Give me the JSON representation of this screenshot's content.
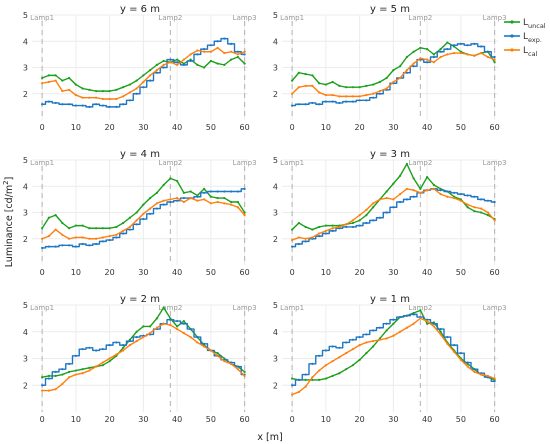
{
  "chart_data": {
    "type": "line",
    "ylabel_main": "Luminance [cd/m",
    "ylabel_sup": "2",
    "ylabel_end": "]",
    "xlabel": "x [m]",
    "xlim": [
      -3,
      61
    ],
    "ylim": [
      1,
      5
    ],
    "xticks": [
      "0",
      "10",
      "20",
      "30",
      "40",
      "50",
      "60"
    ],
    "yticks": [
      "2",
      "3",
      "4",
      "5"
    ],
    "lamps": [
      {
        "name": "Lamp1",
        "x": 0
      },
      {
        "name": "Lamp2",
        "x": 38
      },
      {
        "name": "Lamp3",
        "x": 60
      }
    ],
    "legend": [
      {
        "base": "L",
        "sub": "uncal",
        "color": "#1aa01a"
      },
      {
        "base": "L",
        "sub": "exp.",
        "color": "#1f77c4"
      },
      {
        "base": "L",
        "sub": "cal",
        "color": "#ff7f0e"
      }
    ],
    "x": [
      0,
      2,
      4,
      6,
      8,
      10,
      12,
      14,
      16,
      18,
      20,
      22,
      24,
      26,
      28,
      30,
      32,
      34,
      36,
      38,
      40,
      42,
      44,
      46,
      48,
      50,
      52,
      54,
      56,
      58,
      60
    ],
    "panels": [
      {
        "title": "y = 6 m",
        "series": [
          {
            "name": "L_uncal",
            "color": "#1aa01a",
            "values": [
              2.6,
              2.7,
              2.7,
              2.5,
              2.6,
              2.35,
              2.2,
              2.15,
              2.1,
              2.1,
              2.1,
              2.15,
              2.25,
              2.35,
              2.5,
              2.7,
              2.9,
              3.1,
              3.25,
              3.2,
              3.3,
              3.15,
              3.3,
              3.1,
              3.0,
              3.25,
              3.15,
              3.1,
              3.3,
              3.4,
              3.15
            ]
          },
          {
            "name": "L_exp.",
            "color": "#1f77c4",
            "values": [
              1.6,
              1.7,
              1.65,
              1.6,
              1.6,
              1.55,
              1.55,
              1.5,
              1.6,
              1.55,
              1.5,
              1.5,
              1.6,
              1.75,
              2.0,
              2.25,
              2.5,
              2.8,
              3.0,
              3.3,
              3.2,
              3.1,
              3.25,
              3.5,
              3.7,
              3.85,
              4.0,
              4.1,
              3.9,
              3.6,
              3.5
            ]
          },
          {
            "name": "L_cal",
            "color": "#ff7f0e",
            "values": [
              2.4,
              2.45,
              2.5,
              2.1,
              2.15,
              1.95,
              1.85,
              1.85,
              1.85,
              1.8,
              1.8,
              1.8,
              1.9,
              2.05,
              2.2,
              2.45,
              2.7,
              2.9,
              3.1,
              3.2,
              3.1,
              3.3,
              3.5,
              3.65,
              3.6,
              3.6,
              3.75,
              3.55,
              3.6,
              3.5,
              3.6
            ]
          }
        ]
      },
      {
        "title": "y = 5 m",
        "series": [
          {
            "name": "L_uncal",
            "color": "#1aa01a",
            "values": [
              2.5,
              2.8,
              2.75,
              2.7,
              2.4,
              2.35,
              2.45,
              2.3,
              2.25,
              2.25,
              2.25,
              2.3,
              2.35,
              2.45,
              2.6,
              2.9,
              3.05,
              3.4,
              3.6,
              3.75,
              3.7,
              3.5,
              3.7,
              3.95,
              3.8,
              3.6,
              3.5,
              3.45,
              3.55,
              3.6,
              3.2
            ]
          },
          {
            "name": "L_exp.",
            "color": "#1f77c4",
            "values": [
              1.55,
              1.6,
              1.6,
              1.65,
              1.6,
              1.7,
              1.7,
              1.65,
              1.7,
              1.7,
              1.75,
              1.75,
              1.85,
              2.0,
              2.15,
              2.4,
              2.6,
              2.8,
              3.05,
              3.3,
              3.2,
              3.4,
              3.6,
              3.7,
              3.85,
              3.9,
              3.85,
              3.9,
              3.8,
              3.6,
              3.4
            ]
          },
          {
            "name": "L_cal",
            "color": "#ff7f0e",
            "values": [
              2.0,
              2.25,
              2.3,
              2.3,
              2.05,
              1.95,
              1.95,
              1.9,
              1.9,
              1.9,
              1.9,
              1.95,
              2.0,
              2.1,
              2.2,
              2.45,
              2.6,
              2.9,
              3.15,
              3.35,
              3.3,
              3.2,
              3.4,
              3.5,
              3.55,
              3.55,
              3.5,
              3.45,
              3.55,
              3.4,
              3.3
            ]
          }
        ]
      },
      {
        "title": "y = 4 m",
        "series": [
          {
            "name": "L_uncal",
            "color": "#1aa01a",
            "values": [
              2.4,
              2.8,
              2.9,
              2.6,
              2.4,
              2.5,
              2.5,
              2.4,
              2.4,
              2.4,
              2.4,
              2.45,
              2.6,
              2.8,
              3.0,
              3.3,
              3.55,
              3.75,
              4.05,
              4.3,
              4.2,
              3.75,
              3.8,
              3.65,
              3.9,
              3.6,
              3.55,
              3.55,
              3.4,
              3.4,
              3.0
            ]
          },
          {
            "name": "L_exp.",
            "color": "#1f77c4",
            "values": [
              1.65,
              1.7,
              1.7,
              1.75,
              1.75,
              1.7,
              1.8,
              1.75,
              1.8,
              1.9,
              1.95,
              2.05,
              2.2,
              2.35,
              2.55,
              2.75,
              2.95,
              3.15,
              3.3,
              3.4,
              3.45,
              3.55,
              3.55,
              3.6,
              3.75,
              3.8,
              3.8,
              3.8,
              3.8,
              3.8,
              3.9
            ]
          },
          {
            "name": "L_cal",
            "color": "#ff7f0e",
            "values": [
              2.0,
              2.1,
              2.35,
              2.15,
              2.0,
              2.05,
              2.05,
              2.0,
              2.0,
              2.05,
              2.1,
              2.15,
              2.3,
              2.45,
              2.7,
              2.95,
              3.15,
              3.35,
              3.45,
              3.5,
              3.55,
              3.4,
              3.55,
              3.45,
              3.5,
              3.35,
              3.4,
              3.35,
              3.3,
              3.2,
              2.9
            ]
          }
        ]
      },
      {
        "title": "y = 3 m",
        "series": [
          {
            "name": "L_uncal",
            "color": "#1aa01a",
            "values": [
              2.35,
              2.6,
              2.45,
              2.35,
              2.45,
              2.5,
              2.5,
              2.5,
              2.55,
              2.6,
              2.7,
              2.9,
              3.2,
              3.5,
              3.8,
              4.1,
              4.4,
              4.85,
              4.3,
              3.9,
              4.35,
              4.05,
              3.9,
              3.8,
              3.6,
              3.5,
              3.2,
              3.05,
              3.0,
              2.9,
              2.75
            ]
          },
          {
            "name": "L_exp.",
            "color": "#1f77c4",
            "values": [
              1.7,
              1.8,
              1.9,
              2.0,
              2.1,
              2.2,
              2.3,
              2.4,
              2.45,
              2.45,
              2.5,
              2.6,
              2.7,
              2.8,
              3.0,
              3.2,
              3.4,
              3.5,
              3.6,
              3.75,
              3.85,
              3.9,
              3.85,
              3.8,
              3.75,
              3.7,
              3.65,
              3.6,
              3.5,
              3.45,
              3.4
            ]
          },
          {
            "name": "L_cal",
            "color": "#ff7f0e",
            "values": [
              1.95,
              2.05,
              2.0,
              2.05,
              2.2,
              2.3,
              2.4,
              2.45,
              2.55,
              2.7,
              2.9,
              3.1,
              3.35,
              3.5,
              3.55,
              3.5,
              3.7,
              3.9,
              3.85,
              3.75,
              3.85,
              3.9,
              3.7,
              3.6,
              3.55,
              3.45,
              3.3,
              3.2,
              3.15,
              3.0,
              2.7
            ]
          }
        ]
      },
      {
        "title": "y = 2 m",
        "series": [
          {
            "name": "L_uncal",
            "color": "#1aa01a",
            "values": [
              2.3,
              2.35,
              2.35,
              2.4,
              2.5,
              2.55,
              2.6,
              2.65,
              2.7,
              2.75,
              2.9,
              3.1,
              3.4,
              3.7,
              4.0,
              4.2,
              4.2,
              4.5,
              4.9,
              4.5,
              4.2,
              4.4,
              4.1,
              3.8,
              3.5,
              3.3,
              3.2,
              3.0,
              2.8,
              2.7,
              2.5
            ]
          },
          {
            "name": "L_exp.",
            "color": "#1f77c4",
            "values": [
              2.0,
              2.25,
              2.5,
              2.6,
              2.8,
              3.1,
              3.35,
              3.4,
              3.3,
              3.35,
              3.5,
              3.6,
              3.5,
              3.65,
              3.8,
              3.85,
              3.9,
              4.1,
              4.3,
              4.45,
              4.4,
              4.3,
              4.1,
              3.8,
              3.55,
              3.3,
              3.1,
              2.95,
              2.85,
              2.7,
              2.4
            ]
          },
          {
            "name": "L_cal",
            "color": "#ff7f0e",
            "values": [
              1.8,
              1.8,
              1.85,
              2.05,
              2.3,
              2.4,
              2.45,
              2.55,
              2.7,
              2.85,
              3.0,
              3.15,
              3.3,
              3.5,
              3.65,
              3.8,
              3.95,
              4.15,
              4.3,
              4.25,
              4.1,
              3.95,
              3.8,
              3.6,
              3.45,
              3.3,
              3.1,
              2.9,
              2.8,
              2.6,
              2.35
            ]
          }
        ]
      },
      {
        "title": "y = 1 m",
        "series": [
          {
            "name": "L_uncal",
            "color": "#1aa01a",
            "values": [
              2.25,
              2.2,
              2.2,
              2.2,
              2.2,
              2.25,
              2.35,
              2.45,
              2.6,
              2.75,
              2.95,
              3.2,
              3.45,
              3.75,
              4.05,
              4.3,
              4.55,
              4.6,
              4.7,
              4.8,
              4.3,
              4.35,
              4.0,
              3.6,
              3.3,
              3.0,
              2.8,
              2.6,
              2.4,
              2.3,
              2.2
            ]
          },
          {
            "name": "L_exp.",
            "color": "#1f77c4",
            "values": [
              2.0,
              2.2,
              2.4,
              2.8,
              3.1,
              3.3,
              3.45,
              3.4,
              3.6,
              3.7,
              3.8,
              3.9,
              4.05,
              4.15,
              4.3,
              4.45,
              4.55,
              4.6,
              4.65,
              4.55,
              4.45,
              4.3,
              4.1,
              3.8,
              3.5,
              3.2,
              2.85,
              2.6,
              2.45,
              2.3,
              2.15
            ]
          },
          {
            "name": "L_cal",
            "color": "#ff7f0e",
            "values": [
              1.65,
              1.75,
              1.95,
              2.3,
              2.55,
              2.75,
              2.9,
              3.05,
              3.2,
              3.35,
              3.5,
              3.6,
              3.65,
              3.7,
              3.75,
              3.85,
              4.0,
              4.15,
              4.3,
              4.5,
              4.4,
              4.2,
              3.9,
              3.55,
              3.25,
              2.95,
              2.7,
              2.5,
              2.4,
              2.35,
              2.25
            ]
          }
        ]
      }
    ]
  }
}
